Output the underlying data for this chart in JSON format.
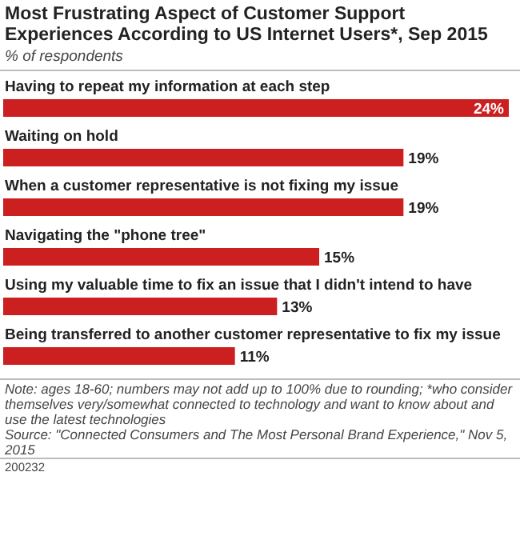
{
  "chart_data": {
    "type": "bar",
    "orientation": "horizontal",
    "title": "Most Frustrating Aspect of Customer Support Experiences According to US Internet Users*, Sep 2015",
    "subtitle": "% of respondents",
    "categories": [
      "Having to repeat my information at each step",
      "Waiting on hold",
      "When a customer representative is not fixing my issue",
      "Navigating the \"phone tree\"",
      "Using my valuable time to fix an issue that I didn't intend to have",
      "Being transferred to another customer representative to fix my issue"
    ],
    "values": [
      24,
      19,
      19,
      15,
      13,
      11
    ],
    "value_labels": [
      "24%",
      "19%",
      "19%",
      "15%",
      "13%",
      "11%"
    ],
    "color": "#cc1f1f",
    "annotations": [
      "Note: ages 18-60; numbers may not add up to 100% due to rounding; *who consider themselves very/somewhat connected to technology and want to know about and use the latest technologies",
      "Source: \"Connected Consumers and The Most Personal Brand Experience,\" Nov 5, 2015",
      "200232"
    ]
  }
}
